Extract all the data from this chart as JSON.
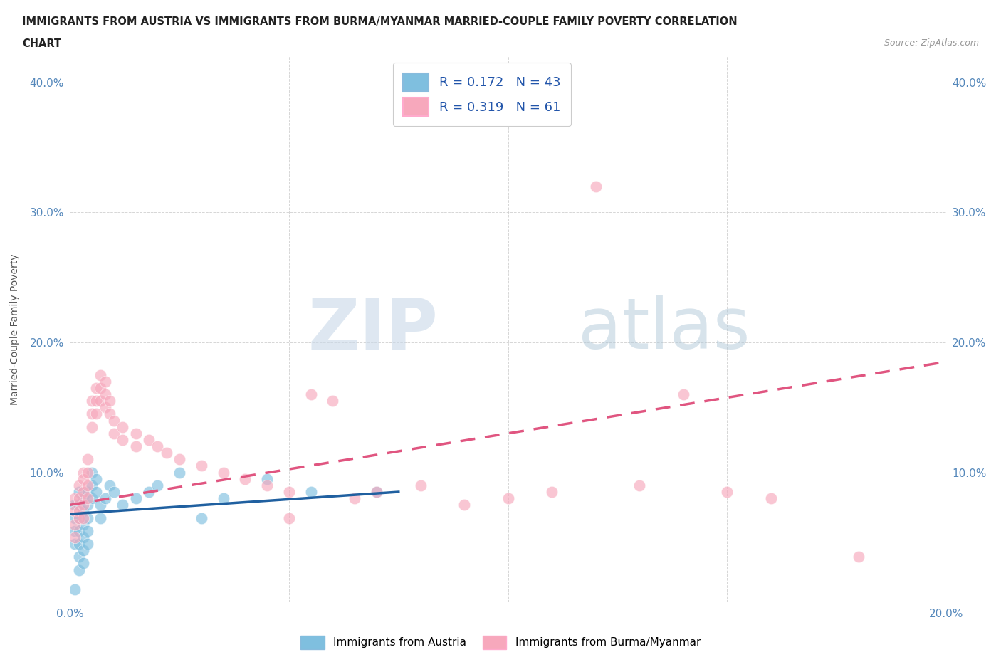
{
  "title_line1": "IMMIGRANTS FROM AUSTRIA VS IMMIGRANTS FROM BURMA/MYANMAR MARRIED-COUPLE FAMILY POVERTY CORRELATION",
  "title_line2": "CHART",
  "source": "Source: ZipAtlas.com",
  "ylabel": "Married-Couple Family Poverty",
  "xlim": [
    0.0,
    0.2
  ],
  "ylim": [
    0.0,
    0.42
  ],
  "xticks": [
    0.0,
    0.05,
    0.1,
    0.15,
    0.2
  ],
  "yticks": [
    0.0,
    0.1,
    0.2,
    0.3,
    0.4
  ],
  "xtick_labels": [
    "0.0%",
    "",
    "",
    "",
    "20.0%"
  ],
  "ytick_labels": [
    "",
    "10.0%",
    "20.0%",
    "30.0%",
    "40.0%"
  ],
  "austria_color": "#7fbfdf",
  "burma_color": "#f7a8bc",
  "austria_R": 0.172,
  "austria_N": 43,
  "burma_R": 0.319,
  "burma_N": 61,
  "austria_line_color": "#2060a0",
  "burma_line_color": "#e05580",
  "watermark_zip": "ZIP",
  "watermark_atlas": "atlas",
  "background_color": "#ffffff",
  "grid_color": "#cccccc",
  "austria_scatter": [
    [
      0.001,
      0.075
    ],
    [
      0.001,
      0.065
    ],
    [
      0.001,
      0.055
    ],
    [
      0.001,
      0.045
    ],
    [
      0.002,
      0.085
    ],
    [
      0.002,
      0.075
    ],
    [
      0.002,
      0.065
    ],
    [
      0.002,
      0.055
    ],
    [
      0.002,
      0.045
    ],
    [
      0.002,
      0.035
    ],
    [
      0.002,
      0.025
    ],
    [
      0.003,
      0.08
    ],
    [
      0.003,
      0.07
    ],
    [
      0.003,
      0.06
    ],
    [
      0.003,
      0.05
    ],
    [
      0.003,
      0.04
    ],
    [
      0.003,
      0.03
    ],
    [
      0.004,
      0.085
    ],
    [
      0.004,
      0.075
    ],
    [
      0.004,
      0.065
    ],
    [
      0.004,
      0.055
    ],
    [
      0.004,
      0.045
    ],
    [
      0.005,
      0.1
    ],
    [
      0.005,
      0.09
    ],
    [
      0.005,
      0.08
    ],
    [
      0.006,
      0.095
    ],
    [
      0.006,
      0.085
    ],
    [
      0.007,
      0.075
    ],
    [
      0.007,
      0.065
    ],
    [
      0.008,
      0.08
    ],
    [
      0.009,
      0.09
    ],
    [
      0.01,
      0.085
    ],
    [
      0.012,
      0.075
    ],
    [
      0.015,
      0.08
    ],
    [
      0.018,
      0.085
    ],
    [
      0.02,
      0.09
    ],
    [
      0.025,
      0.1
    ],
    [
      0.03,
      0.065
    ],
    [
      0.035,
      0.08
    ],
    [
      0.045,
      0.095
    ],
    [
      0.055,
      0.085
    ],
    [
      0.07,
      0.085
    ],
    [
      0.001,
      0.01
    ]
  ],
  "burma_scatter": [
    [
      0.001,
      0.08
    ],
    [
      0.001,
      0.07
    ],
    [
      0.001,
      0.06
    ],
    [
      0.001,
      0.05
    ],
    [
      0.002,
      0.09
    ],
    [
      0.002,
      0.08
    ],
    [
      0.002,
      0.07
    ],
    [
      0.002,
      0.065
    ],
    [
      0.003,
      0.1
    ],
    [
      0.003,
      0.095
    ],
    [
      0.003,
      0.085
    ],
    [
      0.003,
      0.075
    ],
    [
      0.003,
      0.065
    ],
    [
      0.004,
      0.11
    ],
    [
      0.004,
      0.1
    ],
    [
      0.004,
      0.09
    ],
    [
      0.004,
      0.08
    ],
    [
      0.005,
      0.155
    ],
    [
      0.005,
      0.145
    ],
    [
      0.005,
      0.135
    ],
    [
      0.006,
      0.165
    ],
    [
      0.006,
      0.155
    ],
    [
      0.006,
      0.145
    ],
    [
      0.007,
      0.175
    ],
    [
      0.007,
      0.165
    ],
    [
      0.007,
      0.155
    ],
    [
      0.008,
      0.17
    ],
    [
      0.008,
      0.16
    ],
    [
      0.008,
      0.15
    ],
    [
      0.009,
      0.155
    ],
    [
      0.009,
      0.145
    ],
    [
      0.01,
      0.14
    ],
    [
      0.01,
      0.13
    ],
    [
      0.012,
      0.135
    ],
    [
      0.012,
      0.125
    ],
    [
      0.015,
      0.13
    ],
    [
      0.015,
      0.12
    ],
    [
      0.018,
      0.125
    ],
    [
      0.02,
      0.12
    ],
    [
      0.022,
      0.115
    ],
    [
      0.025,
      0.11
    ],
    [
      0.03,
      0.105
    ],
    [
      0.035,
      0.1
    ],
    [
      0.04,
      0.095
    ],
    [
      0.045,
      0.09
    ],
    [
      0.05,
      0.085
    ],
    [
      0.055,
      0.16
    ],
    [
      0.06,
      0.155
    ],
    [
      0.065,
      0.08
    ],
    [
      0.07,
      0.085
    ],
    [
      0.08,
      0.09
    ],
    [
      0.09,
      0.075
    ],
    [
      0.1,
      0.08
    ],
    [
      0.11,
      0.085
    ],
    [
      0.12,
      0.32
    ],
    [
      0.13,
      0.09
    ],
    [
      0.14,
      0.16
    ],
    [
      0.15,
      0.085
    ],
    [
      0.16,
      0.08
    ],
    [
      0.18,
      0.035
    ],
    [
      0.05,
      0.065
    ]
  ],
  "austria_line": [
    [
      0.0,
      0.068
    ],
    [
      0.075,
      0.085
    ]
  ],
  "burma_line": [
    [
      0.0,
      0.075
    ],
    [
      0.2,
      0.185
    ]
  ]
}
